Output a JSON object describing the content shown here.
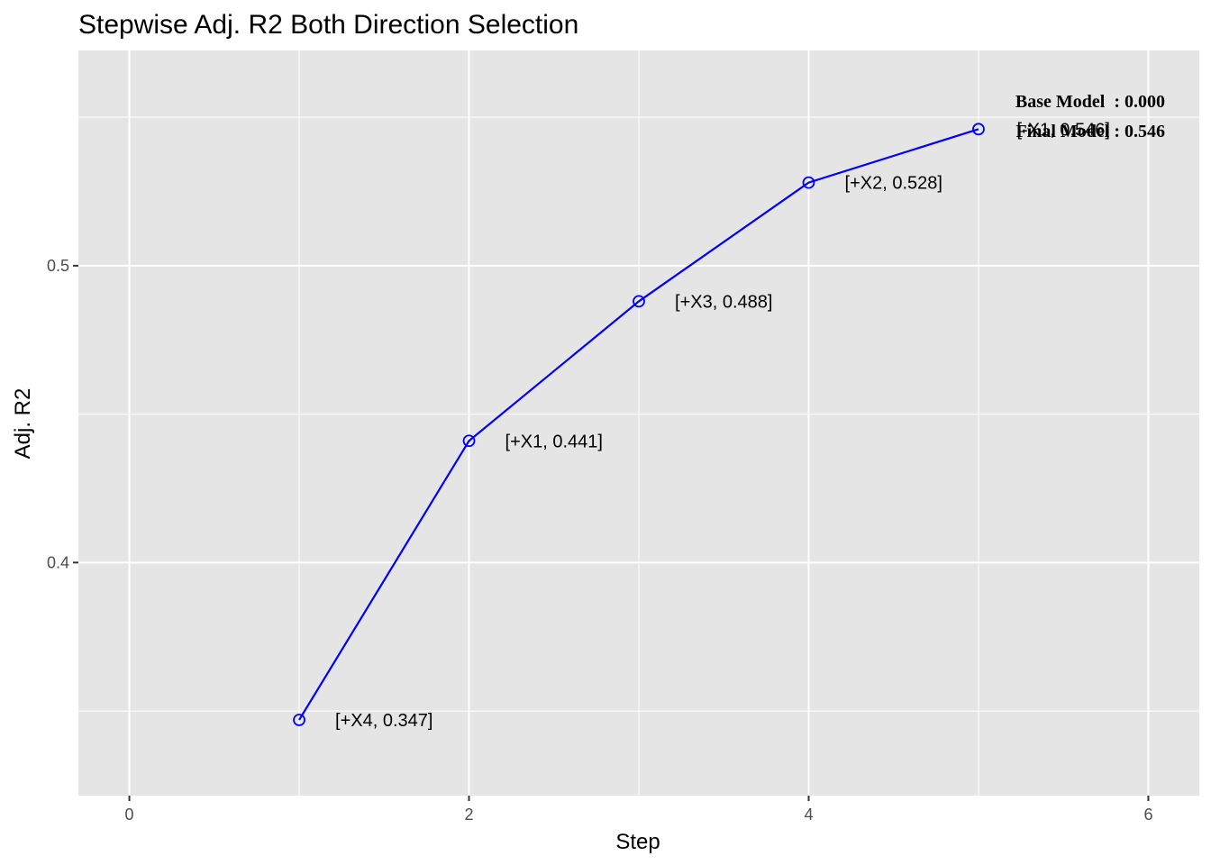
{
  "chart_data": {
    "type": "line",
    "title": "Stepwise Adj. R2 Both Direction Selection",
    "xlabel": "Step",
    "ylabel": "Adj. R2",
    "xlim": [
      -0.3,
      6.3
    ],
    "ylim": [
      0.3215,
      0.5725
    ],
    "x_ticks": [
      0,
      2,
      4,
      6
    ],
    "x_tick_labels": [
      "0",
      "2",
      "4",
      "6"
    ],
    "y_ticks": [
      0.4,
      0.5
    ],
    "y_tick_labels": [
      "0.4",
      "0.5"
    ],
    "y_minor_ticks": [
      0.35,
      0.45,
      0.55
    ],
    "x_minor_ticks": [
      1,
      3,
      5
    ],
    "grid": true,
    "colors": {
      "line": "#0000ff",
      "panel": "#e5e5e5",
      "grid": "#ffffff"
    },
    "x": [
      1,
      2,
      3,
      4,
      5
    ],
    "y": [
      0.347,
      0.441,
      0.488,
      0.528,
      0.546
    ],
    "point_labels": [
      "[+X4, 0.347]",
      "[+X1, 0.441]",
      "[+X3, 0.488]",
      "[+X2, 0.528]",
      "[-X1, 0.546]"
    ],
    "annotations": [
      "Base Model  : 0.000",
      "Final Model : 0.546"
    ]
  }
}
